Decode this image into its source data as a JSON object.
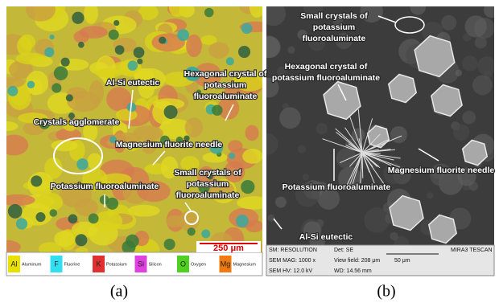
{
  "panel_a": {
    "labels": [
      [
        "Al-Si eutectic"
      ],
      [
        "Hexagonal crystal of",
        "potassium",
        "fluoroaluminate"
      ],
      [
        "Crystals agglomerate"
      ],
      [
        "Magnesium fluorite needle"
      ],
      [
        "Small crystals of",
        "potassium",
        "fluoroaluminate"
      ],
      [
        "Potassium fluoroaluminate"
      ]
    ],
    "scale_bar": "250 μm",
    "legend": [
      {
        "symbol": "Al",
        "name": "Aluminum",
        "color": "#e8e000"
      },
      {
        "symbol": "F",
        "name": "Fluorine",
        "color": "#30e0f0"
      },
      {
        "symbol": "K",
        "name": "Potassium",
        "color": "#e03030"
      },
      {
        "symbol": "Si",
        "name": "Silicon",
        "color": "#e040e0"
      },
      {
        "symbol": "O",
        "name": "Oxygen",
        "color": "#50d020"
      },
      {
        "symbol": "Mg",
        "name": "Magnesium",
        "color": "#f07a10"
      }
    ],
    "caption": "(a)"
  },
  "panel_b": {
    "labels": [
      [
        "Small crystals of",
        "potassium",
        "fluoroaluminate"
      ],
      [
        "Hexagonal crystal of",
        "potassium fluoroaluminate"
      ],
      [
        "Magnesium fluorite needle"
      ],
      [
        "Potassium fluoroaluminate"
      ],
      [
        "Al-Si eutectic"
      ]
    ],
    "info": [
      "SM: RESOLUTION",
      "Det: SE",
      "MIRA3 TESCAN",
      "SEM MAG: 1000 x",
      "View field: 208 μm",
      "50 μm",
      "SEM HV: 12.0 kV",
      "WD: 14.56 mm"
    ],
    "caption": "(b)"
  }
}
